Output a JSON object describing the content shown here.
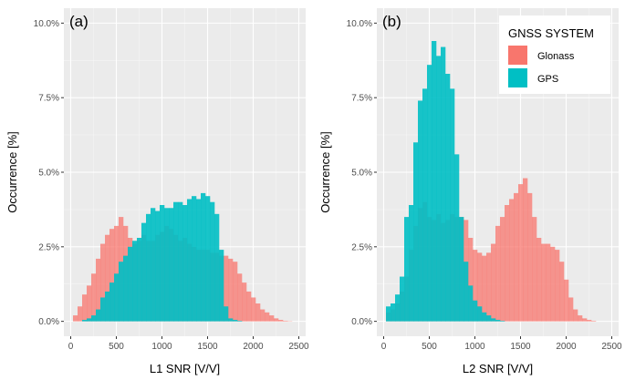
{
  "colors": {
    "panel_bg": "#ebebeb",
    "grid_major": "#ffffff",
    "grid_minor": "#f5f5f5",
    "glonass": "#f8766d",
    "gps": "#00bfc4",
    "axis_text": "#4d4d4d"
  },
  "legend": {
    "title": "GNSS SYSTEM",
    "items": [
      {
        "label": "Glonass",
        "color": "#f8766d"
      },
      {
        "label": "GPS",
        "color": "#00bfc4"
      }
    ],
    "placement": "top-right of panel (b)"
  },
  "chart_data": [
    {
      "type": "histogram",
      "panel_tag": "(a)",
      "xlabel": "L1 SNR [V/V]",
      "ylabel": "Occurrence [%]",
      "xlim": [
        -75,
        2575
      ],
      "ylim": [
        -0.5,
        10.5
      ],
      "x_ticks": [
        0,
        500,
        1000,
        1500,
        2000,
        2500
      ],
      "x_tick_labels": [
        "0",
        "500",
        "1000",
        "1500",
        "2000",
        "2500"
      ],
      "y_ticks": [
        0,
        2.5,
        5,
        7.5,
        10
      ],
      "y_tick_labels": [
        "0.0%",
        "2.5%",
        "5.0%",
        "7.5%",
        "10.0%"
      ],
      "bin_start": 25,
      "bin_width": 50,
      "grid": true,
      "series": [
        {
          "name": "Glonass",
          "fill_opacity": 0.75,
          "values": [
            0.2,
            0.5,
            0.9,
            1.2,
            1.6,
            2.1,
            2.6,
            2.9,
            3.1,
            3.2,
            3.5,
            3.2,
            2.8,
            2.6,
            2.7,
            2.9,
            2.7,
            2.7,
            2.9,
            3.0,
            3.2,
            3.1,
            2.9,
            2.7,
            2.8,
            2.6,
            2.5,
            2.4,
            2.4,
            2.4,
            2.3,
            2.3,
            2.2,
            2.2,
            2.1,
            2.0,
            1.6,
            1.3,
            1.0,
            0.8,
            0.6,
            0.4,
            0.3,
            0.2,
            0.1,
            0.05,
            0.02,
            0.01,
            0.0,
            0.0
          ]
        },
        {
          "name": "GPS",
          "fill_opacity": 0.9,
          "values": [
            0.0,
            0.0,
            0.05,
            0.1,
            0.2,
            0.4,
            0.8,
            1.0,
            1.3,
            1.6,
            2.0,
            2.2,
            2.5,
            2.7,
            2.8,
            3.3,
            3.6,
            3.8,
            3.7,
            3.9,
            3.8,
            3.8,
            4.0,
            4.0,
            3.9,
            4.1,
            4.2,
            4.1,
            4.3,
            4.2,
            4.0,
            3.6,
            2.4,
            0.5,
            0.1,
            0.05,
            0.02,
            0.0,
            0.0,
            0.0,
            0.0,
            0.0,
            0.0,
            0.0,
            0.0,
            0.0,
            0.0,
            0.0,
            0.0,
            0.0
          ]
        }
      ]
    },
    {
      "type": "histogram",
      "panel_tag": "(b)",
      "xlabel": "L2 SNR [V/V]",
      "ylabel": "Occurrence [%]",
      "xlim": [
        -75,
        2575
      ],
      "ylim": [
        -0.5,
        10.5
      ],
      "x_ticks": [
        0,
        500,
        1000,
        1500,
        2000,
        2500
      ],
      "x_tick_labels": [
        "0",
        "500",
        "1000",
        "1500",
        "2000",
        "2500"
      ],
      "y_ticks": [
        0,
        2.5,
        5,
        7.5,
        10
      ],
      "y_tick_labels": [
        "0.0%",
        "2.5%",
        "5.0%",
        "7.5%",
        "10.0%"
      ],
      "bin_start": 25,
      "bin_width": 50,
      "grid": true,
      "series": [
        {
          "name": "Glonass",
          "fill_opacity": 0.75,
          "values": [
            0.3,
            0.4,
            0.6,
            1.0,
            1.5,
            2.4,
            3.2,
            3.8,
            4.0,
            3.5,
            3.4,
            3.6,
            3.3,
            3.4,
            3.6,
            3.5,
            3.5,
            3.4,
            2.8,
            2.4,
            2.3,
            2.2,
            2.3,
            2.6,
            3.2,
            3.5,
            3.9,
            4.1,
            4.3,
            4.6,
            4.8,
            4.3,
            3.5,
            2.8,
            2.6,
            2.6,
            2.5,
            2.4,
            2.0,
            1.4,
            0.8,
            0.4,
            0.2,
            0.1,
            0.05,
            0.02,
            0.0,
            0.0,
            0.0,
            0.0
          ]
        },
        {
          "name": "GPS",
          "fill_opacity": 0.9,
          "values": [
            0.5,
            0.6,
            0.9,
            1.5,
            3.5,
            3.9,
            6.0,
            7.4,
            7.8,
            8.6,
            9.4,
            8.9,
            9.2,
            8.3,
            7.8,
            5.6,
            3.5,
            2.0,
            1.2,
            0.7,
            0.5,
            0.3,
            0.2,
            0.1,
            0.05,
            0.02,
            0.0,
            0.0,
            0.0,
            0.0,
            0.0,
            0.0,
            0.0,
            0.0,
            0.0,
            0.0,
            0.0,
            0.0,
            0.0,
            0.0,
            0.0,
            0.0,
            0.0,
            0.0,
            0.0,
            0.0,
            0.0,
            0.0,
            0.0,
            0.0
          ]
        }
      ]
    }
  ]
}
